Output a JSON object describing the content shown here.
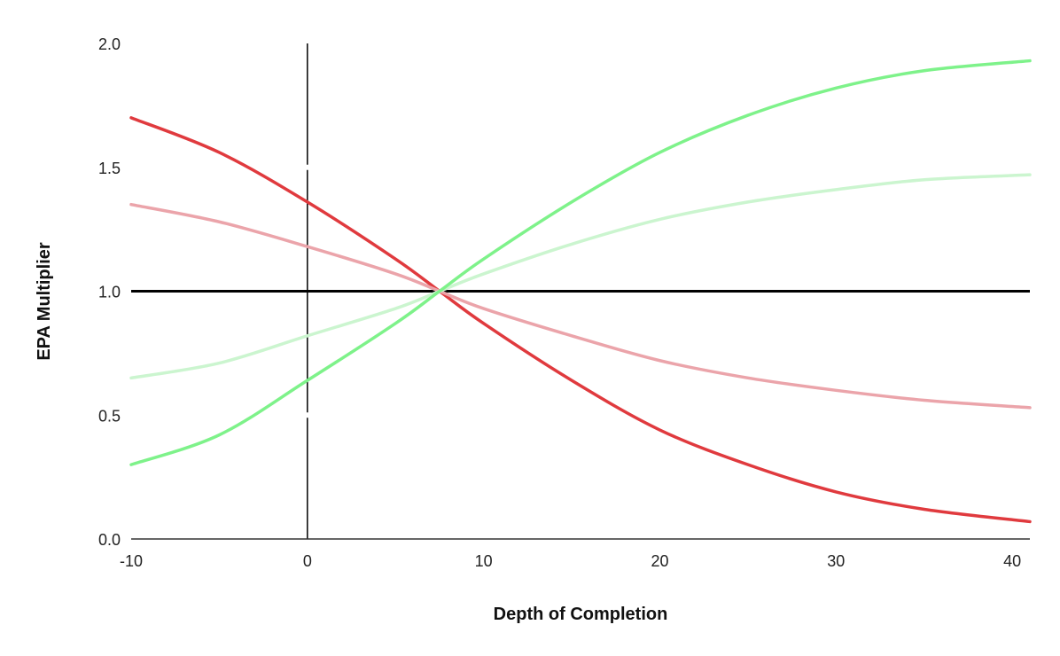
{
  "chart_data": {
    "type": "line",
    "title": "",
    "xlabel": "Depth of Completion",
    "ylabel": "EPA Multiplier",
    "xlim": [
      -10,
      41
    ],
    "ylim": [
      0,
      2
    ],
    "x_ticks": [
      -10,
      0,
      10,
      20,
      30,
      40
    ],
    "y_ticks": [
      "0.0",
      "0.5",
      "1.0",
      "1.5",
      "2.0"
    ],
    "grid": false,
    "legend": "none",
    "reference_lines": [
      {
        "orientation": "horizontal",
        "value": 1.0,
        "color": "#000000"
      },
      {
        "orientation": "vertical",
        "value": 0,
        "color": "#000000"
      }
    ],
    "series": [
      {
        "color": "#e03a3e",
        "x": [
          -10,
          -5,
          0,
          5,
          7.5,
          10,
          15,
          20,
          25,
          30,
          35,
          41
        ],
        "values": [
          1.7,
          1.56,
          1.36,
          1.13,
          1.0,
          0.87,
          0.64,
          0.44,
          0.3,
          0.19,
          0.12,
          0.07
        ]
      },
      {
        "color": "#eba4aa",
        "x": [
          -10,
          -5,
          0,
          5,
          7.5,
          10,
          15,
          20,
          25,
          30,
          35,
          41
        ],
        "values": [
          1.35,
          1.28,
          1.18,
          1.07,
          1.0,
          0.93,
          0.82,
          0.72,
          0.65,
          0.6,
          0.56,
          0.53
        ]
      },
      {
        "color": "#cbf5cf",
        "x": [
          -10,
          -5,
          0,
          5,
          7.5,
          10,
          15,
          20,
          25,
          30,
          35,
          41
        ],
        "values": [
          0.65,
          0.71,
          0.82,
          0.93,
          1.0,
          1.07,
          1.19,
          1.29,
          1.36,
          1.41,
          1.45,
          1.47
        ]
      },
      {
        "color": "#7ef28a",
        "x": [
          -10,
          -5,
          0,
          5,
          7.5,
          10,
          15,
          20,
          25,
          30,
          35,
          41
        ],
        "values": [
          0.3,
          0.42,
          0.64,
          0.87,
          1.0,
          1.13,
          1.36,
          1.56,
          1.71,
          1.82,
          1.89,
          1.93
        ]
      }
    ]
  }
}
